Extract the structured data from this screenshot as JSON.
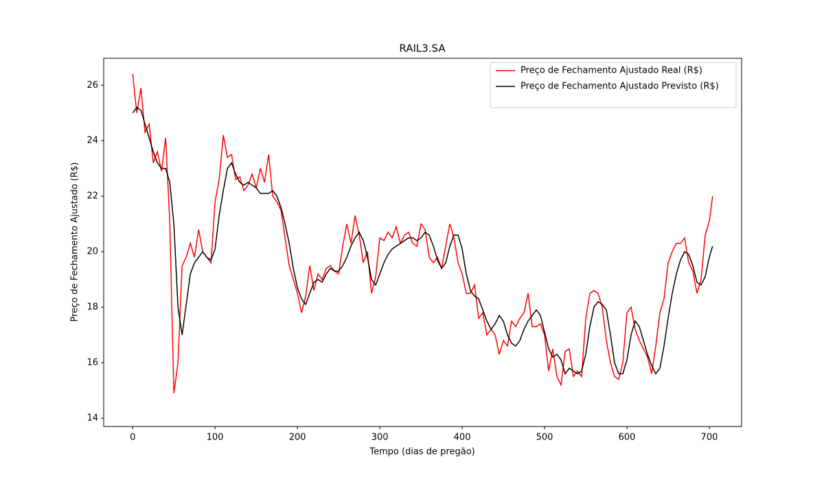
{
  "chart_data": {
    "type": "line",
    "title": "RAIL3.SA",
    "x_label": "Tempo (dias de pregão)",
    "y_label": "Preço de Fechamento Ajustado (R$)",
    "x": [
      0,
      5,
      10,
      15,
      20,
      25,
      30,
      35,
      40,
      45,
      50,
      55,
      60,
      65,
      70,
      75,
      80,
      85,
      90,
      95,
      100,
      105,
      110,
      115,
      120,
      125,
      130,
      135,
      140,
      145,
      150,
      155,
      160,
      165,
      170,
      175,
      180,
      185,
      190,
      195,
      200,
      205,
      210,
      215,
      220,
      225,
      230,
      235,
      240,
      245,
      250,
      255,
      260,
      265,
      270,
      275,
      280,
      285,
      290,
      295,
      300,
      305,
      310,
      315,
      320,
      325,
      330,
      335,
      340,
      345,
      350,
      355,
      360,
      365,
      370,
      375,
      380,
      385,
      390,
      395,
      400,
      405,
      410,
      415,
      420,
      425,
      430,
      435,
      440,
      445,
      450,
      455,
      460,
      465,
      470,
      475,
      480,
      485,
      490,
      495,
      500,
      505,
      510,
      515,
      520,
      525,
      530,
      535,
      540,
      545,
      550,
      555,
      560,
      565,
      570,
      575,
      580,
      585,
      590,
      595,
      600,
      605,
      610,
      615,
      620,
      625,
      630,
      635,
      640,
      645,
      650,
      655,
      660,
      665,
      670,
      675,
      680,
      685,
      690,
      695,
      700,
      704
    ],
    "series": [
      {
        "name": "Preço de Fechamento Ajustado Real (R$)",
        "color": "#ff0000",
        "values": [
          26.4,
          25.0,
          25.9,
          24.3,
          24.6,
          23.2,
          23.6,
          22.9,
          24.1,
          21.1,
          14.9,
          16.0,
          19.5,
          19.8,
          20.3,
          19.8,
          20.8,
          20.0,
          19.8,
          19.6,
          21.8,
          22.6,
          24.2,
          23.4,
          23.5,
          22.6,
          22.7,
          22.2,
          22.4,
          22.8,
          22.3,
          23.0,
          22.5,
          23.5,
          22.0,
          21.8,
          21.5,
          20.5,
          19.5,
          19.0,
          18.5,
          17.8,
          18.4,
          19.5,
          18.6,
          19.2,
          19.0,
          19.4,
          19.5,
          19.3,
          19.2,
          20.2,
          21.0,
          20.3,
          21.3,
          20.6,
          19.6,
          20.0,
          18.5,
          19.1,
          20.5,
          20.4,
          20.7,
          20.5,
          20.9,
          20.3,
          20.6,
          20.7,
          20.3,
          20.2,
          21.0,
          20.8,
          19.8,
          19.6,
          19.8,
          19.4,
          20.2,
          21.0,
          20.5,
          19.6,
          19.2,
          18.5,
          18.5,
          18.8,
          17.6,
          17.8,
          17.0,
          17.2,
          17.0,
          16.3,
          16.8,
          16.6,
          17.5,
          17.3,
          17.6,
          17.8,
          18.5,
          17.3,
          17.3,
          17.4,
          17.0,
          15.7,
          16.5,
          15.5,
          15.2,
          16.4,
          16.5,
          15.5,
          15.7,
          15.5,
          17.6,
          18.5,
          18.6,
          18.5,
          18.0,
          16.8,
          16.0,
          15.5,
          15.4,
          16.0,
          17.8,
          18.0,
          17.2,
          16.8,
          16.5,
          16.2,
          15.6,
          16.6,
          17.8,
          18.3,
          19.6,
          20.0,
          20.3,
          20.3,
          20.5,
          19.6,
          19.3,
          18.5,
          19.0,
          20.6,
          21.1,
          22.0
        ]
      },
      {
        "name": "Preço de Fechamento Ajustado Previsto (R$)",
        "color": "#000000",
        "values": [
          25.0,
          25.2,
          25.1,
          24.6,
          24.1,
          23.6,
          23.2,
          23.0,
          23.0,
          22.5,
          21.0,
          18.0,
          17.0,
          18.1,
          19.2,
          19.6,
          19.8,
          20.0,
          19.8,
          19.7,
          20.1,
          21.3,
          22.2,
          23.0,
          23.2,
          22.8,
          22.5,
          22.4,
          22.5,
          22.4,
          22.3,
          22.1,
          22.1,
          22.1,
          22.2,
          22.0,
          21.6,
          21.0,
          20.3,
          19.4,
          18.7,
          18.3,
          18.1,
          18.5,
          18.9,
          19.0,
          18.9,
          19.2,
          19.4,
          19.3,
          19.3,
          19.5,
          19.8,
          20.2,
          20.5,
          20.7,
          20.4,
          19.8,
          19.0,
          18.8,
          19.2,
          19.6,
          19.9,
          20.1,
          20.2,
          20.3,
          20.4,
          20.5,
          20.5,
          20.4,
          20.5,
          20.7,
          20.6,
          20.2,
          19.7,
          19.4,
          19.6,
          20.2,
          20.6,
          20.6,
          20.1,
          19.2,
          18.6,
          18.4,
          18.3,
          17.9,
          17.5,
          17.2,
          17.4,
          17.7,
          17.5,
          17.0,
          16.7,
          16.6,
          16.8,
          17.2,
          17.5,
          17.7,
          17.9,
          17.7,
          17.1,
          16.5,
          16.2,
          16.3,
          16.1,
          15.6,
          15.8,
          15.7,
          15.6,
          15.7,
          16.3,
          17.3,
          18.0,
          18.2,
          18.1,
          17.9,
          17.0,
          16.0,
          15.6,
          15.6,
          16.1,
          17.0,
          17.5,
          17.3,
          16.8,
          16.3,
          15.9,
          15.6,
          15.8,
          16.6,
          17.6,
          18.5,
          19.2,
          19.7,
          20.0,
          19.9,
          19.5,
          18.9,
          18.8,
          19.1,
          19.8,
          20.2
        ]
      }
    ],
    "xlim": [
      -35.2,
      739.2
    ],
    "xticks": [
      0,
      100,
      200,
      300,
      400,
      500,
      600,
      700
    ],
    "ylim": [
      13.7,
      26.97
    ],
    "yticks": [
      14,
      16,
      18,
      20,
      22,
      24,
      26
    ],
    "legend": "upper right",
    "grid": false
  }
}
